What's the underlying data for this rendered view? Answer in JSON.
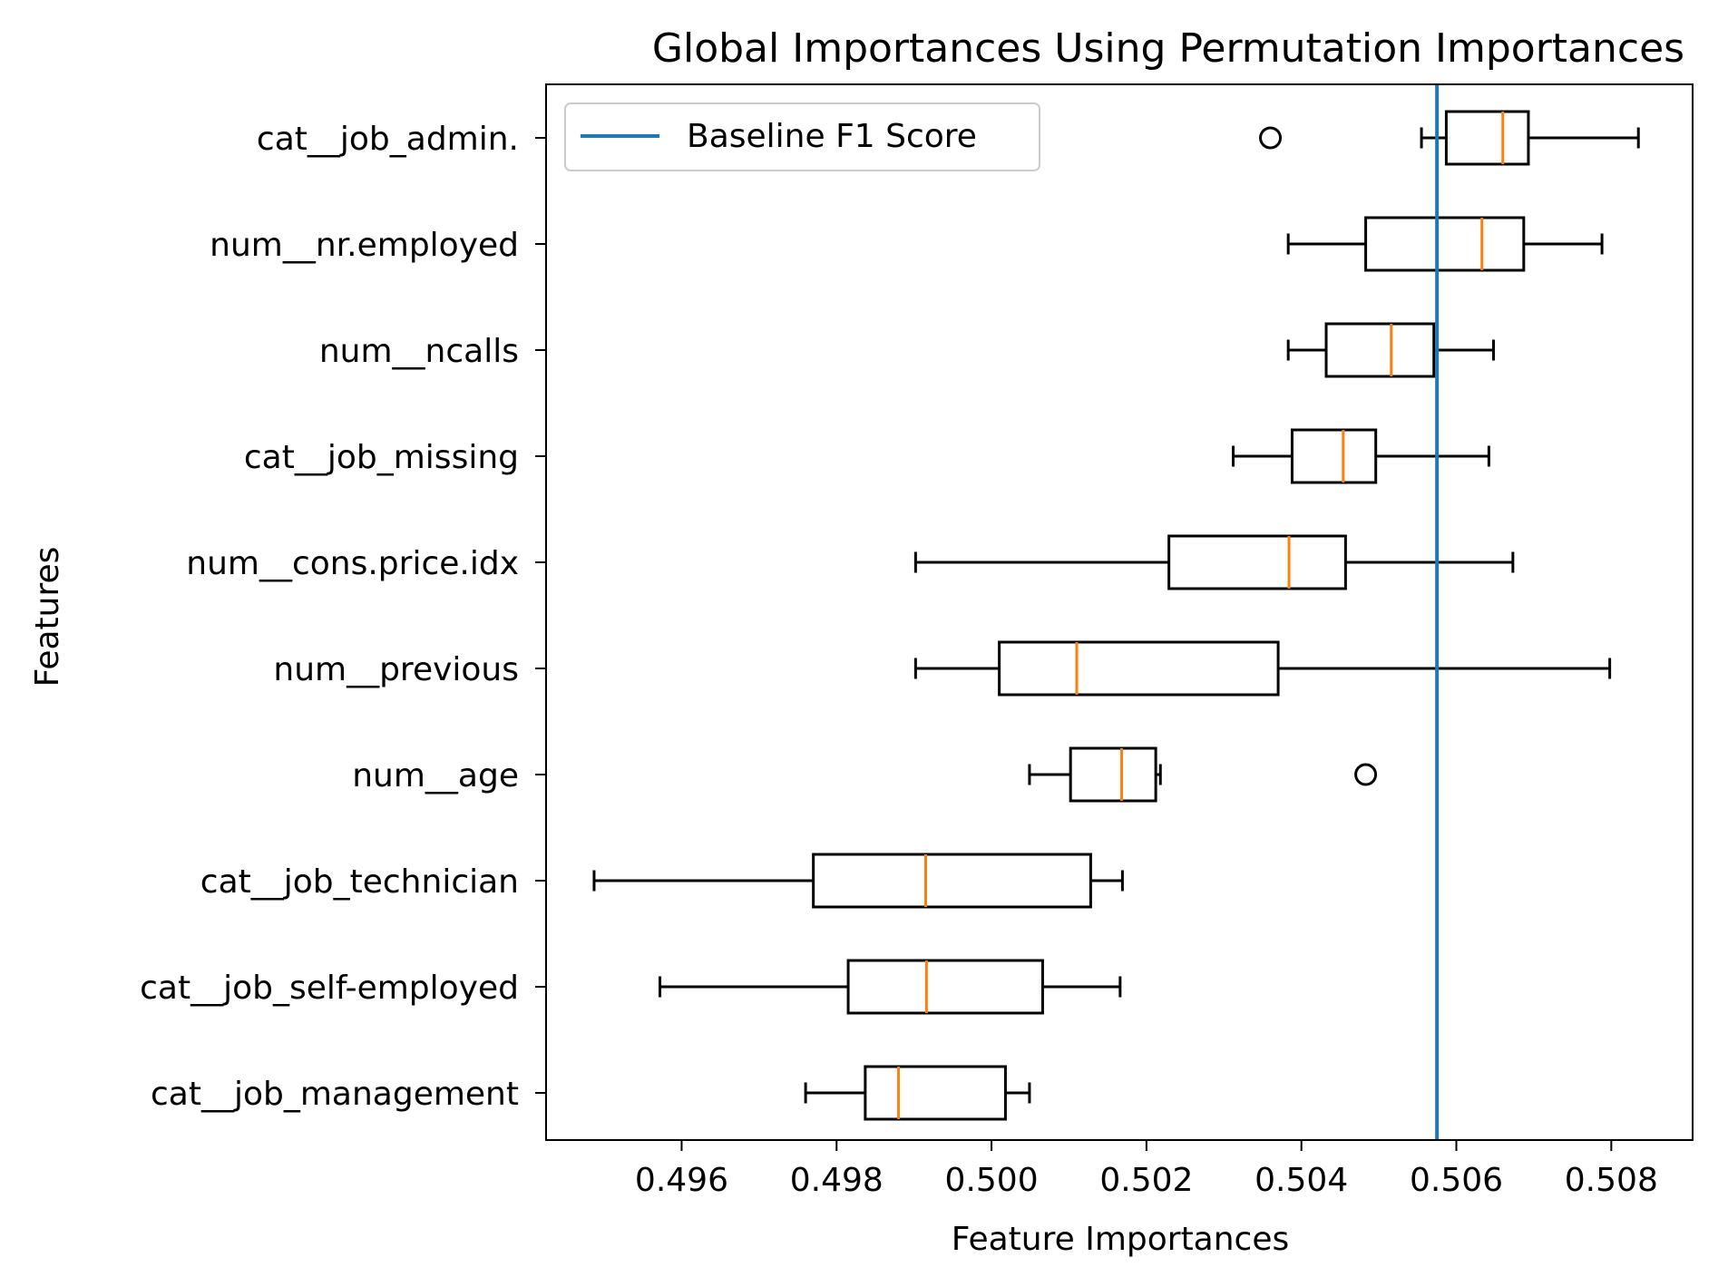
{
  "chart_data": {
    "type": "boxplot",
    "orientation": "horizontal",
    "title": "Global Importances Using Permutation Importances",
    "xlabel": "Feature Importances",
    "ylabel": "Features",
    "xlim": [
      0.49425,
      0.50905
    ],
    "xticks": [
      0.496,
      0.498,
      0.5,
      0.502,
      0.504,
      0.506,
      0.508
    ],
    "xtick_labels": [
      "0.496",
      "0.498",
      "0.500",
      "0.502",
      "0.504",
      "0.506",
      "0.508"
    ],
    "grid": false,
    "legend": {
      "placement": "top-left",
      "entries": [
        "Baseline F1 Score"
      ]
    },
    "baseline": {
      "label": "Baseline F1 Score",
      "value": 0.50575,
      "color": "#1f77b4"
    },
    "colors": {
      "box": "#000000",
      "median": "#ff7f0e",
      "baseline": "#1f77b4"
    },
    "categories": [
      "cat__job_admin.",
      "num__nr.employed",
      "num__ncalls",
      "cat__job_missing",
      "num__cons.price.idx",
      "num__previous",
      "num__age",
      "cat__job_technician",
      "cat__job_self-employed",
      "cat__job_management"
    ],
    "boxes": [
      {
        "feature": "cat__job_admin.",
        "whislo": 0.50555,
        "q1": 0.50587,
        "med": 0.5066,
        "q3": 0.50693,
        "whishi": 0.50835,
        "fliers": [
          0.5036
        ]
      },
      {
        "feature": "num__nr.employed",
        "whislo": 0.50383,
        "q1": 0.50483,
        "med": 0.50633,
        "q3": 0.50687,
        "whishi": 0.50788,
        "fliers": []
      },
      {
        "feature": "num__ncalls",
        "whislo": 0.50383,
        "q1": 0.50432,
        "med": 0.50516,
        "q3": 0.50571,
        "whishi": 0.50648,
        "fliers": []
      },
      {
        "feature": "cat__job_missing",
        "whislo": 0.50312,
        "q1": 0.50388,
        "med": 0.50454,
        "q3": 0.50496,
        "whishi": 0.50642,
        "fliers": []
      },
      {
        "feature": "num__cons.price.idx",
        "whislo": 0.49902,
        "q1": 0.50229,
        "med": 0.50384,
        "q3": 0.50457,
        "whishi": 0.50673,
        "fliers": []
      },
      {
        "feature": "num__previous",
        "whislo": 0.49902,
        "q1": 0.5001,
        "med": 0.5011,
        "q3": 0.5037,
        "whishi": 0.50798,
        "fliers": []
      },
      {
        "feature": "num__age",
        "whislo": 0.50049,
        "q1": 0.50102,
        "med": 0.50168,
        "q3": 0.50212,
        "whishi": 0.50218,
        "fliers": [
          0.50483
        ]
      },
      {
        "feature": "cat__job_technician",
        "whislo": 0.49487,
        "q1": 0.4977,
        "med": 0.49915,
        "q3": 0.50128,
        "whishi": 0.50169,
        "fliers": []
      },
      {
        "feature": "cat__job_self-employed",
        "whislo": 0.49572,
        "q1": 0.49815,
        "med": 0.49916,
        "q3": 0.50066,
        "whishi": 0.50166,
        "fliers": []
      },
      {
        "feature": "cat__job_management",
        "whislo": 0.4976,
        "q1": 0.49837,
        "med": 0.4988,
        "q3": 0.50018,
        "whishi": 0.50049,
        "fliers": []
      }
    ]
  }
}
